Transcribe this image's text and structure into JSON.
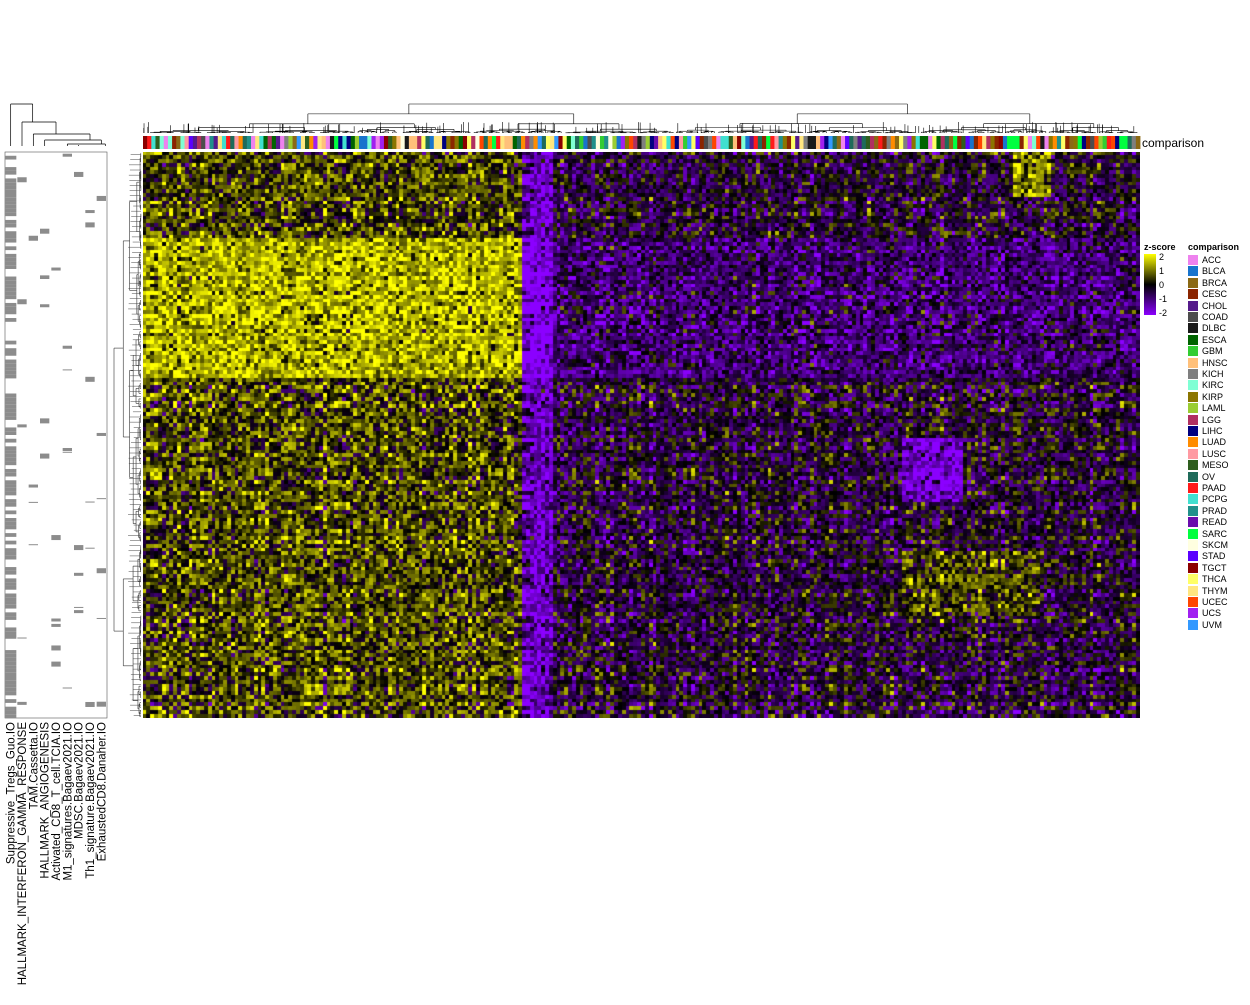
{
  "chart_data": {
    "type": "heatmap",
    "title": "",
    "annotation_track_label": "comparison",
    "zscore_legend": {
      "title": "z-score",
      "ticks": [
        "2",
        "1",
        "0",
        "-1",
        "-2"
      ],
      "low_color": "#8B00FF",
      "mid_color": "#000000",
      "high_color": "#FFFF00"
    },
    "row_labels": [
      "Suppressive_Tregs_Guo.IO",
      "HALLMARK_INTERFERON_GAMMA_RESPONSE",
      "TAM.Cassetta.IO",
      "HALLMARK_ANGIOGENESIS",
      "Activated_CD8_T_cell.TCIA.IO",
      "M1_signatures.Bagaev2021.IO",
      "MDSC.Bagaev2021.IO",
      "Th1_signature.Bagaev2021.IO",
      "ExhaustedCD8.Danaher.IO"
    ],
    "comparison_legend": {
      "title": "comparison",
      "items": [
        {
          "label": "ACC",
          "color": "#EE82EE"
        },
        {
          "label": "BLCA",
          "color": "#1874CD"
        },
        {
          "label": "BRCA",
          "color": "#8B6914"
        },
        {
          "label": "CESC",
          "color": "#8B2500"
        },
        {
          "label": "CHOL",
          "color": "#551A8B"
        },
        {
          "label": "COAD",
          "color": "#4D4D4D"
        },
        {
          "label": "DLBC",
          "color": "#1A1A1A"
        },
        {
          "label": "ESCA",
          "color": "#006400"
        },
        {
          "label": "GBM",
          "color": "#32CD32"
        },
        {
          "label": "HNSC",
          "color": "#FFC07A"
        },
        {
          "label": "KICH",
          "color": "#7F7F7F"
        },
        {
          "label": "KIRC",
          "color": "#7FFFD4"
        },
        {
          "label": "KIRP",
          "color": "#8B7500"
        },
        {
          "label": "LAML",
          "color": "#9ACD32"
        },
        {
          "label": "LGG",
          "color": "#B03060"
        },
        {
          "label": "LIHC",
          "color": "#000080"
        },
        {
          "label": "LUAD",
          "color": "#FF8C00"
        },
        {
          "label": "LUSC",
          "color": "#FF9AA2"
        },
        {
          "label": "MESO",
          "color": "#2E5E1E"
        },
        {
          "label": "OV",
          "color": "#1F6B5A"
        },
        {
          "label": "PAAD",
          "color": "#FF1A1A"
        },
        {
          "label": "PCPG",
          "color": "#40E0D0"
        },
        {
          "label": "PRAD",
          "color": "#20908A"
        },
        {
          "label": "READ",
          "color": "#6A0DAD"
        },
        {
          "label": "SARC",
          "color": "#00FF40"
        },
        {
          "label": "SKCM",
          "color": "#FFFFE0"
        },
        {
          "label": "STAD",
          "color": "#5B00FF"
        },
        {
          "label": "TGCT",
          "color": "#8B0000"
        },
        {
          "label": "THCA",
          "color": "#FFFF66"
        },
        {
          "label": "THYM",
          "color": "#FFE680"
        },
        {
          "label": "UCEC",
          "color": "#FF4500"
        },
        {
          "label": "UCS",
          "color": "#A020F0"
        },
        {
          "label": "UVM",
          "color": "#3399FF"
        }
      ]
    }
  }
}
